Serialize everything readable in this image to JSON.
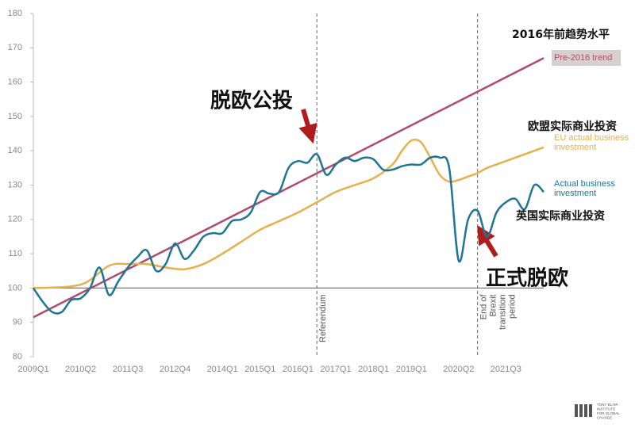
{
  "chart_data": {
    "type": "line",
    "xlim": [
      0,
      54
    ],
    "ylim": [
      80,
      180
    ],
    "yticks": [
      80,
      90,
      100,
      110,
      120,
      130,
      140,
      150,
      160,
      170,
      180
    ],
    "xticks": [
      {
        "value": 0,
        "label": "2009Q1"
      },
      {
        "value": 5,
        "label": "2010Q2"
      },
      {
        "value": 10,
        "label": "2011Q3"
      },
      {
        "value": 15,
        "label": "2012Q4"
      },
      {
        "value": 20,
        "label": "2014Q1"
      },
      {
        "value": 24,
        "label": "2015Q1"
      },
      {
        "value": 28,
        "label": "2016Q1"
      },
      {
        "value": 32,
        "label": "2017Q1"
      },
      {
        "value": 36,
        "label": "2018Q1"
      },
      {
        "value": 40,
        "label": "2019Q1"
      },
      {
        "value": 45,
        "label": "2020Q2"
      },
      {
        "value": 50,
        "label": "2021Q3"
      }
    ],
    "baseline": 100,
    "series": [
      {
        "name": [
          "Pre-2016 trend"
        ],
        "name_cn": "2016年前趋势水平",
        "color": "#b04a6e",
        "smooth": false,
        "x": [
          0,
          54
        ],
        "values": [
          91.5,
          167
        ]
      },
      {
        "name": [
          "EU actual business",
          "investment"
        ],
        "name_cn": "欧盟实际商业投资",
        "color": "#e6b04a",
        "smooth": true,
        "x": [
          0,
          5,
          8,
          10,
          12,
          14,
          16,
          18,
          20,
          22,
          24,
          26,
          28,
          30,
          32,
          34,
          36,
          38,
          39,
          40,
          41,
          42,
          43,
          44,
          45,
          46,
          47,
          48,
          50,
          52,
          54
        ],
        "values": [
          100,
          101,
          106.5,
          107,
          107,
          106,
          105.5,
          107,
          110,
          113.5,
          117,
          119.5,
          122,
          125,
          128,
          130,
          132,
          136,
          140,
          143,
          142.5,
          138,
          133,
          131,
          131.5,
          132.5,
          133.5,
          135,
          137,
          139,
          141
        ]
      },
      {
        "name": [
          "Actual business",
          "investment"
        ],
        "name_cn": "英国实际商业投资",
        "color": "#1f7597",
        "smooth": true,
        "x": [
          0,
          1,
          2,
          3,
          4,
          5,
          6,
          7,
          8,
          9,
          10,
          11,
          12,
          13,
          14,
          15,
          16,
          17,
          18,
          19,
          20,
          21,
          22,
          23,
          24,
          25,
          26,
          27,
          28,
          29,
          30,
          31,
          32,
          33,
          34,
          35,
          36,
          37,
          38,
          39,
          40,
          41,
          42,
          43,
          44,
          45,
          46,
          47,
          48,
          49,
          50,
          51,
          52,
          53,
          54
        ],
        "values": [
          100,
          96,
          93,
          93,
          96.5,
          97,
          100,
          106,
          98,
          102,
          106,
          109,
          111,
          105,
          107,
          113,
          108.5,
          111,
          115,
          116,
          116,
          119.5,
          120,
          122,
          128,
          127.5,
          128,
          135,
          137,
          136.5,
          139,
          133,
          136,
          138,
          137,
          138,
          137.5,
          134.5,
          134.5,
          135.5,
          136,
          136,
          138,
          138,
          135,
          108,
          120,
          122.5,
          115,
          122,
          125,
          126,
          123,
          130,
          128
        ]
      }
    ],
    "vlines": [
      {
        "x": 30,
        "label": [
          "Referendum"
        ],
        "label_cn": "脱欧公投"
      },
      {
        "x": 47,
        "label": [
          "End of",
          "Brexit",
          "transition",
          "period"
        ],
        "label_cn": "正式脱欧"
      }
    ],
    "logo": [
      "TONY BLAIR",
      "INSTITUTE",
      "FOR GLOBAL",
      "CHANGE"
    ]
  }
}
